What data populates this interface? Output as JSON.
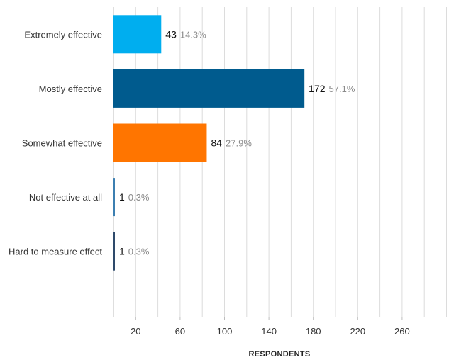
{
  "chart_data": {
    "type": "bar",
    "orientation": "horizontal",
    "categories": [
      "Extremely effective",
      "Mostly effective",
      "Somewhat effective",
      "Not effective at all",
      "Hard to measure effect"
    ],
    "values": [
      43,
      172,
      84,
      1,
      1
    ],
    "percentages": [
      "14.3%",
      "57.1%",
      "27.9%",
      "0.3%",
      "0.3%"
    ],
    "colors": [
      "#00aeef",
      "#005b8e",
      "#ff7500",
      "#3c7fb1",
      "#2e4a6b"
    ],
    "xlabel": "RESPONDENTS",
    "xlim": [
      0,
      300
    ],
    "x_ticks": [
      20,
      60,
      100,
      140,
      180,
      220,
      260
    ],
    "grid_step": 20,
    "grid": true
  }
}
